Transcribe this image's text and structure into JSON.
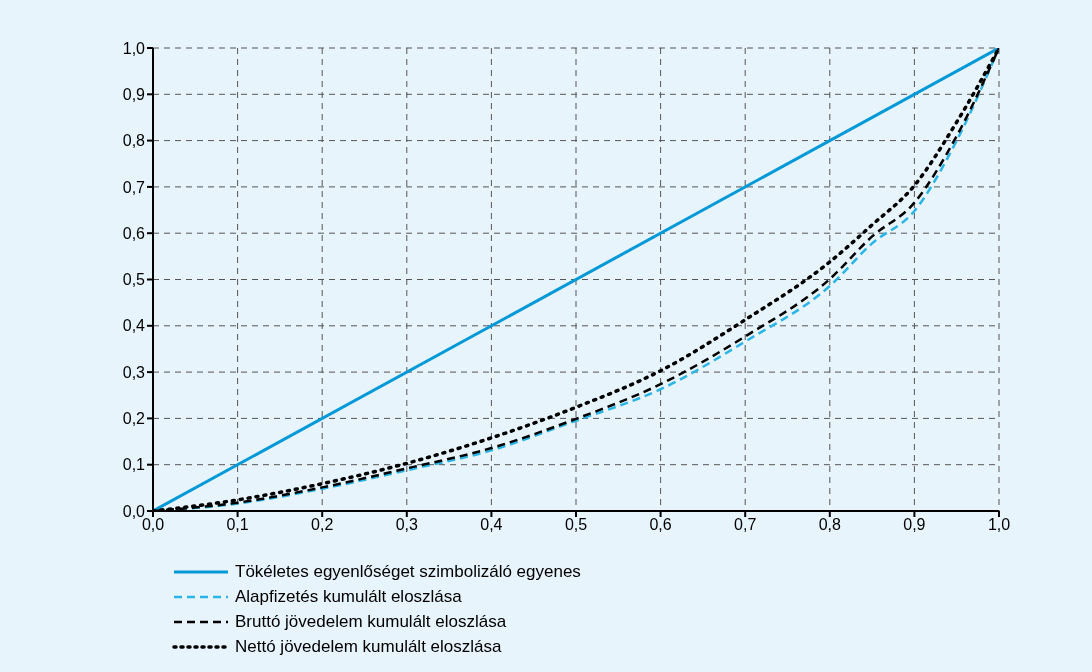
{
  "chart_data": {
    "type": "line",
    "x": [
      0,
      0.1,
      0.2,
      0.3,
      0.4,
      0.5,
      0.6,
      0.7,
      0.8,
      0.85,
      0.9,
      0.95,
      1
    ],
    "series": [
      {
        "name": "Tökéletes egyenlőséget szimbolizáló egyenes",
        "color": "#0099d8",
        "line_style": "solid",
        "x": [
          0,
          1
        ],
        "values": [
          0,
          1
        ]
      },
      {
        "name": "Alapfizetés kumulált eloszlása",
        "color": "#29b5e8",
        "line_style": "dashed",
        "values": [
          0,
          0.016,
          0.048,
          0.088,
          0.131,
          0.195,
          0.263,
          0.366,
          0.486,
          0.578,
          0.648,
          0.8,
          1
        ]
      },
      {
        "name": "Bruttó jövedelem kumulált eloszlása",
        "color": "#000000",
        "line_style": "dashed",
        "values": [
          0,
          0.018,
          0.051,
          0.092,
          0.136,
          0.199,
          0.274,
          0.377,
          0.501,
          0.593,
          0.666,
          0.81,
          1
        ]
      },
      {
        "name": "Nettó jövedelem kumulált eloszlása",
        "color": "#000000",
        "line_style": "dotted",
        "values": [
          0,
          0.024,
          0.059,
          0.103,
          0.158,
          0.224,
          0.303,
          0.413,
          0.538,
          0.618,
          0.703,
          0.84,
          1
        ]
      }
    ],
    "xlim": [
      0,
      1
    ],
    "ylim": [
      0,
      1
    ],
    "xticks": [
      {
        "value": 0,
        "label": "0,0"
      },
      {
        "value": 0.1,
        "label": "0,1"
      },
      {
        "value": 0.2,
        "label": "0,2"
      },
      {
        "value": 0.3,
        "label": "0,3"
      },
      {
        "value": 0.4,
        "label": "0,4"
      },
      {
        "value": 0.5,
        "label": "0,5"
      },
      {
        "value": 0.6,
        "label": "0,6"
      },
      {
        "value": 0.7,
        "label": "0,7"
      },
      {
        "value": 0.8,
        "label": "0,8"
      },
      {
        "value": 0.9,
        "label": "0,9"
      },
      {
        "value": 1,
        "label": "1,0"
      }
    ],
    "yticks": [
      {
        "value": 0,
        "label": "0,0"
      },
      {
        "value": 0.1,
        "label": "0,1"
      },
      {
        "value": 0.2,
        "label": "0,2"
      },
      {
        "value": 0.3,
        "label": "0,3"
      },
      {
        "value": 0.4,
        "label": "0,4"
      },
      {
        "value": 0.5,
        "label": "0,5"
      },
      {
        "value": 0.6,
        "label": "0,6"
      },
      {
        "value": 0.7,
        "label": "0,7"
      },
      {
        "value": 0.8,
        "label": "0,8"
      },
      {
        "value": 0.9,
        "label": "0,9"
      },
      {
        "value": 1,
        "label": "1,0"
      }
    ],
    "grid": true,
    "legend": "bottom left",
    "marker": "none"
  }
}
